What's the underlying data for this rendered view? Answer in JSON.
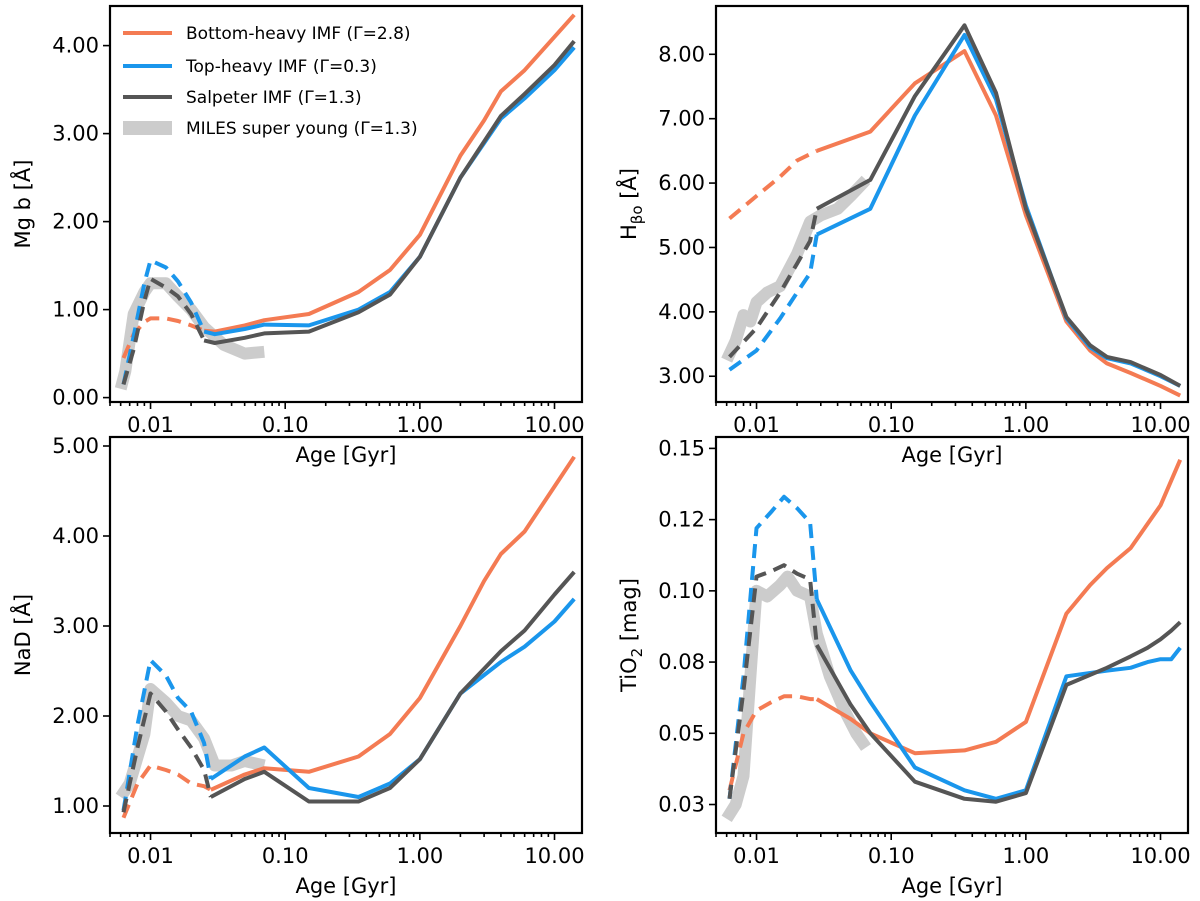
{
  "chart_data": {
    "type": "line",
    "x_scale": "log",
    "xlabel": "Age [Gyr]",
    "x_ticks": [
      0.01,
      0.1,
      1,
      10
    ],
    "x_tick_labels": [
      "0.01",
      "0.10",
      "1.00",
      "10.00"
    ],
    "xlim": [
      0.005,
      16
    ],
    "legend": {
      "placement": "top-left of first panel",
      "entries": [
        {
          "key": "bottom",
          "label": "Bottom-heavy IMF (Γ=2.8)"
        },
        {
          "key": "top",
          "label": "Top-heavy IMF (Γ=0.3)"
        },
        {
          "key": "salp",
          "label": "Salpeter IMF (Γ=1.3)"
        },
        {
          "key": "miles",
          "label": "MILES super young (Γ=1.3)"
        }
      ]
    },
    "series_styles": {
      "bottom": {
        "color": "#f47b53",
        "width": 4
      },
      "top": {
        "color": "#1a96ec",
        "width": 4
      },
      "salp": {
        "color": "#555555",
        "width": 4
      },
      "miles": {
        "color": "#bbbbbb",
        "width": 12,
        "opacity": 0.75
      }
    },
    "panels": [
      {
        "id": "mgb",
        "ylabel": "Mg b [Å]",
        "ylim": [
          -0.05,
          4.45
        ],
        "y_ticks": [
          0,
          1,
          2,
          3,
          4
        ],
        "y_tick_labels": [
          "0.00",
          "1.00",
          "2.00",
          "3.00",
          "4.00"
        ],
        "series": [
          {
            "key": "miles",
            "style": "solid",
            "x": [
              0.006,
              0.0065,
              0.0075,
              0.009,
              0.01,
              0.013,
              0.016,
              0.02,
              0.025,
              0.035,
              0.05,
              0.07
            ],
            "y": [
              0.1,
              0.3,
              0.95,
              1.2,
              1.3,
              1.3,
              1.15,
              1.0,
              0.8,
              0.6,
              0.5,
              0.52
            ]
          },
          {
            "key": "bottom",
            "style": "dashed",
            "x": [
              0.0063,
              0.0075,
              0.009,
              0.01,
              0.013,
              0.016,
              0.02,
              0.025
            ],
            "y": [
              0.45,
              0.72,
              0.86,
              0.9,
              0.9,
              0.87,
              0.82,
              0.76
            ]
          },
          {
            "key": "bottom",
            "style": "solid",
            "x": [
              0.025,
              0.03,
              0.05,
              0.07,
              0.15,
              0.35,
              0.6,
              1.0,
              2.0,
              3.0,
              4.0,
              6.0,
              10.0,
              14.0
            ],
            "y": [
              0.76,
              0.75,
              0.82,
              0.88,
              0.95,
              1.2,
              1.45,
              1.85,
              2.75,
              3.15,
              3.48,
              3.72,
              4.1,
              4.35
            ]
          },
          {
            "key": "top",
            "style": "dashed",
            "x": [
              0.0063,
              0.0075,
              0.009,
              0.01,
              0.013,
              0.016,
              0.02,
              0.025
            ],
            "y": [
              0.15,
              0.7,
              1.3,
              1.56,
              1.48,
              1.32,
              1.08,
              0.75
            ]
          },
          {
            "key": "top",
            "style": "solid",
            "x": [
              0.025,
              0.03,
              0.05,
              0.07,
              0.15,
              0.35,
              0.6,
              1.0,
              2.0,
              4.0,
              6.0,
              10.0,
              14.0
            ],
            "y": [
              0.75,
              0.72,
              0.78,
              0.83,
              0.82,
              1.0,
              1.2,
              1.6,
              2.5,
              3.17,
              3.4,
              3.72,
              3.98
            ]
          },
          {
            "key": "salp",
            "style": "dashed",
            "x": [
              0.0063,
              0.0075,
              0.009,
              0.01,
              0.013,
              0.016,
              0.02,
              0.025
            ],
            "y": [
              0.15,
              0.55,
              1.1,
              1.35,
              1.25,
              1.15,
              0.95,
              0.65
            ]
          },
          {
            "key": "salp",
            "style": "solid",
            "x": [
              0.025,
              0.03,
              0.05,
              0.07,
              0.15,
              0.35,
              0.6,
              1.0,
              2.0,
              4.0,
              6.0,
              10.0,
              14.0
            ],
            "y": [
              0.65,
              0.62,
              0.68,
              0.73,
              0.75,
              0.97,
              1.17,
              1.6,
              2.5,
              3.2,
              3.45,
              3.78,
              4.05
            ]
          }
        ]
      },
      {
        "id": "hbeta",
        "ylabel_main": "H",
        "ylabel_sub": "βo",
        "ylabel_tail": " [Å]",
        "ylim": [
          2.6,
          8.75
        ],
        "y_ticks": [
          3,
          4,
          5,
          6,
          7,
          8
        ],
        "y_tick_labels": [
          "3.00",
          "4.00",
          "5.00",
          "6.00",
          "7.00",
          "8.00"
        ],
        "series": [
          {
            "key": "miles",
            "style": "solid",
            "x": [
              0.006,
              0.007,
              0.008,
              0.009,
              0.01,
              0.012,
              0.015,
              0.02,
              0.025,
              0.03,
              0.04,
              0.05,
              0.065
            ],
            "y": [
              3.25,
              3.55,
              3.95,
              3.85,
              4.15,
              4.3,
              4.4,
              4.9,
              5.4,
              5.5,
              5.6,
              5.8,
              6.05
            ]
          },
          {
            "key": "bottom",
            "style": "dashed",
            "x": [
              0.0063,
              0.01,
              0.015,
              0.02,
              0.028
            ],
            "y": [
              5.45,
              5.8,
              6.1,
              6.35,
              6.5
            ]
          },
          {
            "key": "bottom",
            "style": "solid",
            "x": [
              0.028,
              0.07,
              0.15,
              0.35,
              0.6,
              1.0,
              2.0,
              3.0,
              4.0,
              6.0,
              10.0,
              14.0
            ],
            "y": [
              6.5,
              6.8,
              7.55,
              8.05,
              7.05,
              5.5,
              3.85,
              3.4,
              3.2,
              3.05,
              2.85,
              2.7
            ]
          },
          {
            "key": "top",
            "style": "dashed",
            "x": [
              0.0063,
              0.01,
              0.015,
              0.02,
              0.025,
              0.028
            ],
            "y": [
              3.1,
              3.4,
              3.9,
              4.3,
              4.6,
              5.2
            ]
          },
          {
            "key": "top",
            "style": "solid",
            "x": [
              0.028,
              0.07,
              0.15,
              0.35,
              0.6,
              1.0,
              2.0,
              3.0,
              4.0,
              6.0,
              10.0,
              14.0
            ],
            "y": [
              5.2,
              5.6,
              7.05,
              8.3,
              7.3,
              5.65,
              3.9,
              3.45,
              3.28,
              3.2,
              3.0,
              2.85
            ]
          },
          {
            "key": "salp",
            "style": "dashed",
            "x": [
              0.0063,
              0.01,
              0.015,
              0.02,
              0.025,
              0.028
            ],
            "y": [
              3.3,
              3.75,
              4.3,
              4.75,
              5.1,
              5.6
            ]
          },
          {
            "key": "salp",
            "style": "solid",
            "x": [
              0.028,
              0.07,
              0.15,
              0.35,
              0.6,
              1.0,
              2.0,
              3.0,
              4.0,
              6.0,
              10.0,
              14.0
            ],
            "y": [
              5.6,
              6.05,
              7.35,
              8.45,
              7.4,
              5.6,
              3.92,
              3.48,
              3.3,
              3.22,
              3.02,
              2.85
            ]
          }
        ]
      },
      {
        "id": "nad",
        "ylabel": "NaD [Å]",
        "ylim": [
          0.7,
          5.1
        ],
        "y_ticks": [
          1,
          2,
          3,
          4,
          5
        ],
        "y_tick_labels": [
          "1.00",
          "2.00",
          "3.00",
          "4.00",
          "5.00"
        ],
        "series": [
          {
            "key": "miles",
            "style": "solid",
            "x": [
              0.006,
              0.007,
              0.009,
              0.01,
              0.013,
              0.016,
              0.02,
              0.025,
              0.03,
              0.04,
              0.05,
              0.07
            ],
            "y": [
              1.1,
              1.25,
              1.8,
              2.3,
              2.15,
              2.0,
              1.95,
              1.75,
              1.45,
              1.45,
              1.5,
              1.45
            ]
          },
          {
            "key": "bottom",
            "style": "dashed",
            "x": [
              0.0063,
              0.008,
              0.01,
              0.013,
              0.016,
              0.02,
              0.025,
              0.028
            ],
            "y": [
              0.87,
              1.25,
              1.45,
              1.4,
              1.35,
              1.25,
              1.22,
              1.18
            ]
          },
          {
            "key": "bottom",
            "style": "solid",
            "x": [
              0.028,
              0.05,
              0.07,
              0.15,
              0.35,
              0.6,
              1.0,
              2.0,
              3.0,
              4.0,
              6.0,
              10.0,
              14.0
            ],
            "y": [
              1.18,
              1.35,
              1.42,
              1.38,
              1.55,
              1.8,
              2.2,
              3.0,
              3.5,
              3.8,
              4.05,
              4.55,
              4.88
            ]
          },
          {
            "key": "top",
            "style": "dashed",
            "x": [
              0.0063,
              0.008,
              0.01,
              0.013,
              0.016,
              0.02,
              0.025,
              0.028
            ],
            "y": [
              0.95,
              1.9,
              2.62,
              2.45,
              2.2,
              2.05,
              1.7,
              1.3
            ]
          },
          {
            "key": "top",
            "style": "solid",
            "x": [
              0.028,
              0.05,
              0.07,
              0.15,
              0.35,
              0.6,
              1.0,
              2.0,
              4.0,
              6.0,
              10.0,
              14.0
            ],
            "y": [
              1.3,
              1.55,
              1.65,
              1.2,
              1.1,
              1.25,
              1.52,
              2.25,
              2.6,
              2.77,
              3.05,
              3.3
            ]
          },
          {
            "key": "salp",
            "style": "dashed",
            "x": [
              0.0063,
              0.008,
              0.01,
              0.013,
              0.016,
              0.02,
              0.025,
              0.028
            ],
            "y": [
              0.93,
              1.65,
              2.25,
              2.05,
              1.85,
              1.65,
              1.4,
              1.1
            ]
          },
          {
            "key": "salp",
            "style": "solid",
            "x": [
              0.028,
              0.05,
              0.07,
              0.15,
              0.35,
              0.6,
              1.0,
              2.0,
              4.0,
              6.0,
              10.0,
              14.0
            ],
            "y": [
              1.1,
              1.3,
              1.38,
              1.05,
              1.05,
              1.2,
              1.52,
              2.25,
              2.72,
              2.95,
              3.35,
              3.6
            ]
          }
        ]
      },
      {
        "id": "tio2",
        "ylabel_main": "TiO",
        "ylabel_sub": "2",
        "ylabel_tail": " [mag]",
        "ylim": [
          0.015,
          0.154
        ],
        "y_ticks": [
          0.025,
          0.05,
          0.075,
          0.1,
          0.125,
          0.15
        ],
        "y_tick_labels": [
          "0.03",
          "0.05",
          "0.08",
          "0.10",
          "0.12",
          "0.15"
        ],
        "series": [
          {
            "key": "miles",
            "style": "solid",
            "x": [
              0.006,
              0.007,
              0.008,
              0.009,
              0.01,
              0.012,
              0.015,
              0.017,
              0.02,
              0.025,
              0.028,
              0.035,
              0.045,
              0.055,
              0.065
            ],
            "y": [
              0.02,
              0.025,
              0.035,
              0.07,
              0.1,
              0.098,
              0.102,
              0.105,
              0.1,
              0.098,
              0.085,
              0.07,
              0.058,
              0.05,
              0.045
            ]
          },
          {
            "key": "bottom",
            "style": "dashed",
            "x": [
              0.0063,
              0.008,
              0.01,
              0.013,
              0.016,
              0.02,
              0.025,
              0.028
            ],
            "y": [
              0.03,
              0.05,
              0.058,
              0.061,
              0.063,
              0.063,
              0.062,
              0.062
            ]
          },
          {
            "key": "bottom",
            "style": "solid",
            "x": [
              0.028,
              0.05,
              0.07,
              0.15,
              0.35,
              0.6,
              1.0,
              2.0,
              3.0,
              4.0,
              6.0,
              10.0,
              14.0
            ],
            "y": [
              0.062,
              0.055,
              0.05,
              0.043,
              0.044,
              0.047,
              0.054,
              0.092,
              0.102,
              0.108,
              0.115,
              0.13,
              0.146
            ]
          },
          {
            "key": "top",
            "style": "dashed",
            "x": [
              0.0063,
              0.008,
              0.01,
              0.013,
              0.016,
              0.02,
              0.025,
              0.028
            ],
            "y": [
              0.027,
              0.07,
              0.122,
              0.128,
              0.133,
              0.129,
              0.124,
              0.097
            ]
          },
          {
            "key": "top",
            "style": "solid",
            "x": [
              0.028,
              0.05,
              0.07,
              0.15,
              0.35,
              0.6,
              1.0,
              2.0,
              4.0,
              6.0,
              8.0,
              10.0,
              12.0,
              14.0
            ],
            "y": [
              0.097,
              0.072,
              0.061,
              0.038,
              0.03,
              0.027,
              0.03,
              0.07,
              0.072,
              0.073,
              0.075,
              0.076,
              0.076,
              0.08
            ]
          },
          {
            "key": "salp",
            "style": "dashed",
            "x": [
              0.0063,
              0.008,
              0.01,
              0.013,
              0.016,
              0.02,
              0.025,
              0.028
            ],
            "y": [
              0.027,
              0.065,
              0.105,
              0.107,
              0.109,
              0.106,
              0.104,
              0.081
            ]
          },
          {
            "key": "salp",
            "style": "solid",
            "x": [
              0.028,
              0.05,
              0.07,
              0.15,
              0.35,
              0.6,
              1.0,
              2.0,
              4.0,
              6.0,
              8.0,
              10.0,
              12.0,
              14.0
            ],
            "y": [
              0.081,
              0.06,
              0.05,
              0.033,
              0.027,
              0.026,
              0.029,
              0.067,
              0.073,
              0.077,
              0.08,
              0.083,
              0.086,
              0.089
            ]
          }
        ]
      }
    ]
  }
}
